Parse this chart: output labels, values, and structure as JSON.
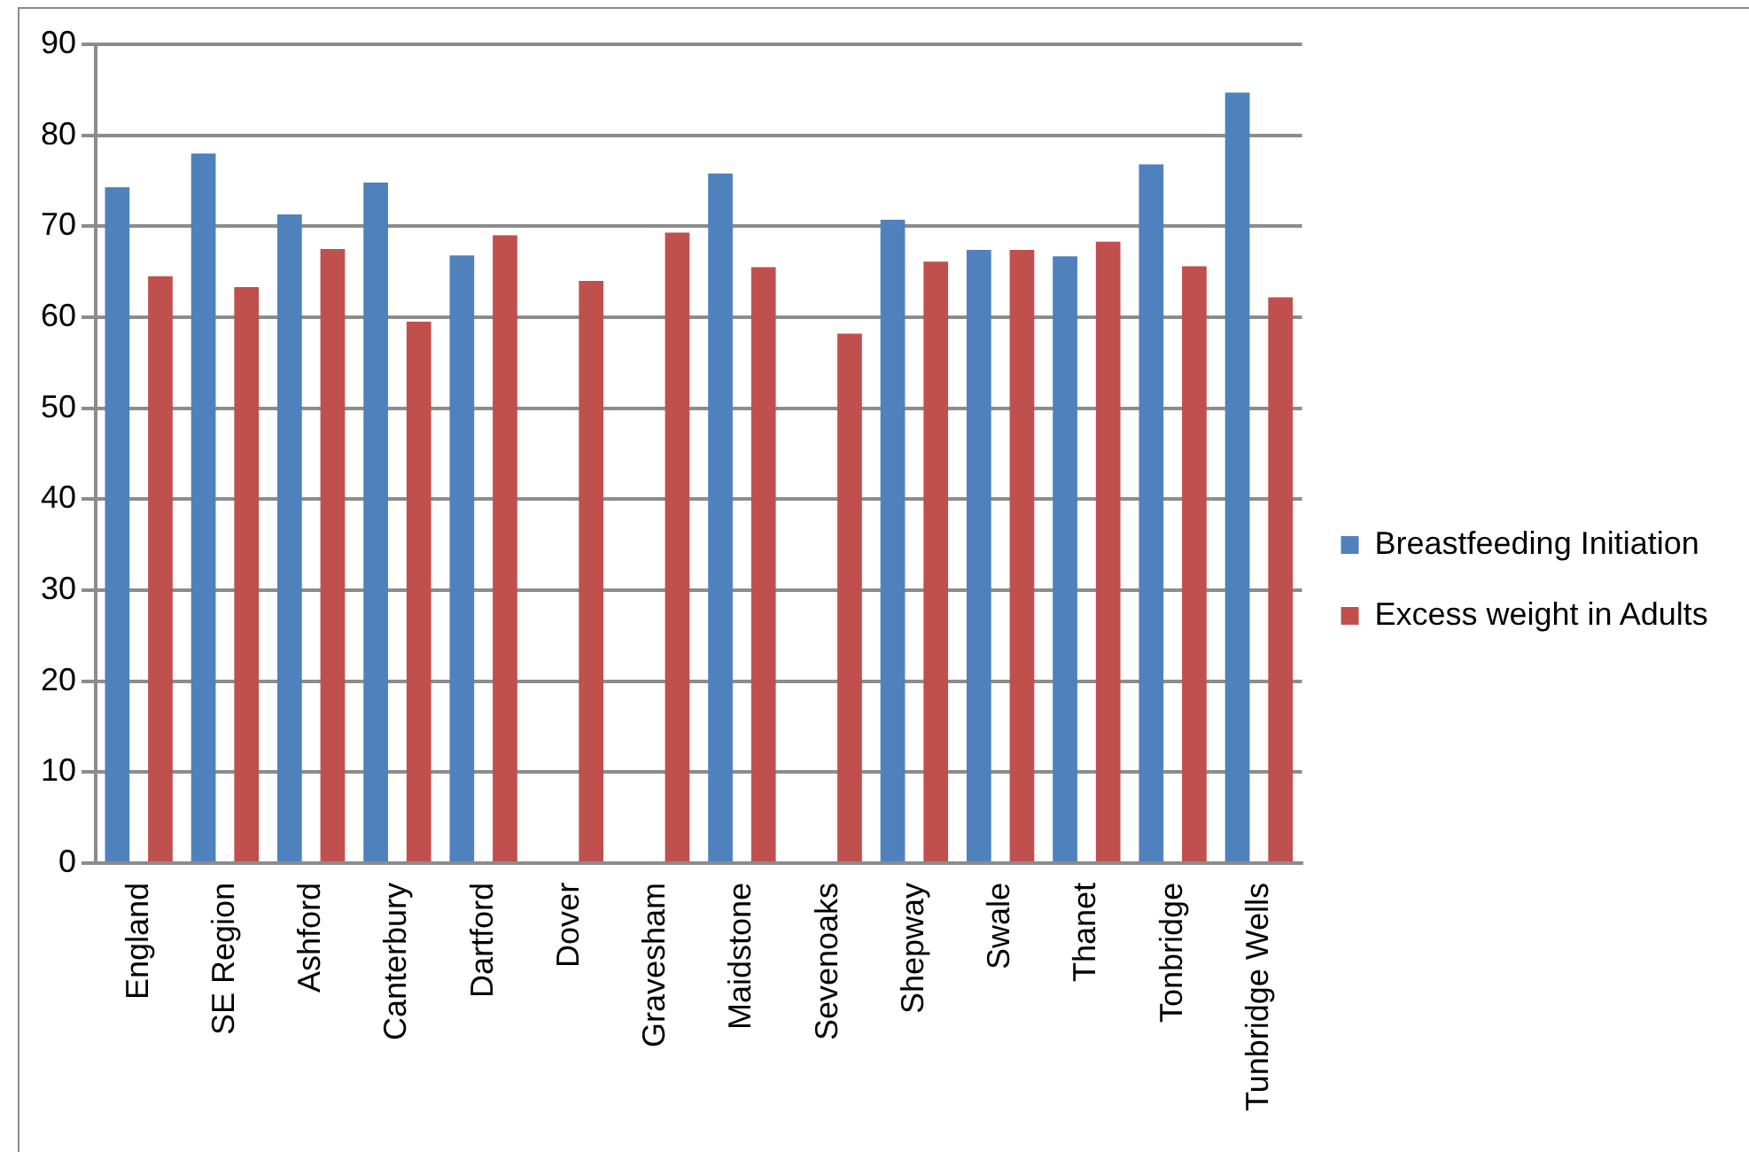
{
  "chart_data": {
    "type": "bar",
    "categories": [
      "England",
      "SE Region",
      "Ashford",
      "Canterbury",
      "Dartford",
      "Dover",
      "Gravesham",
      "Maidstone",
      "Sevenoaks",
      "Shepway",
      "Swale",
      "Thanet",
      "Tonbridge",
      "Tunbridge Wells"
    ],
    "series": [
      {
        "name": "Breastfeeding Initiation",
        "color": "#4f81bd",
        "values": [
          74.3,
          78,
          71.3,
          74.8,
          66.8,
          null,
          null,
          75.8,
          null,
          70.7,
          67.4,
          66.7,
          76.8,
          84.7
        ]
      },
      {
        "name": "Excess weight in Adults",
        "color": "#c0504d",
        "values": [
          64.5,
          63.3,
          67.5,
          59.5,
          69,
          64,
          69.3,
          65.5,
          58.2,
          66.1,
          67.4,
          68.3,
          65.6,
          62.2
        ]
      }
    ],
    "ylim": [
      0,
      90
    ],
    "yticks": [
      0,
      10,
      20,
      30,
      40,
      50,
      60,
      70,
      80,
      90
    ],
    "grid": "y",
    "legend": "right"
  }
}
